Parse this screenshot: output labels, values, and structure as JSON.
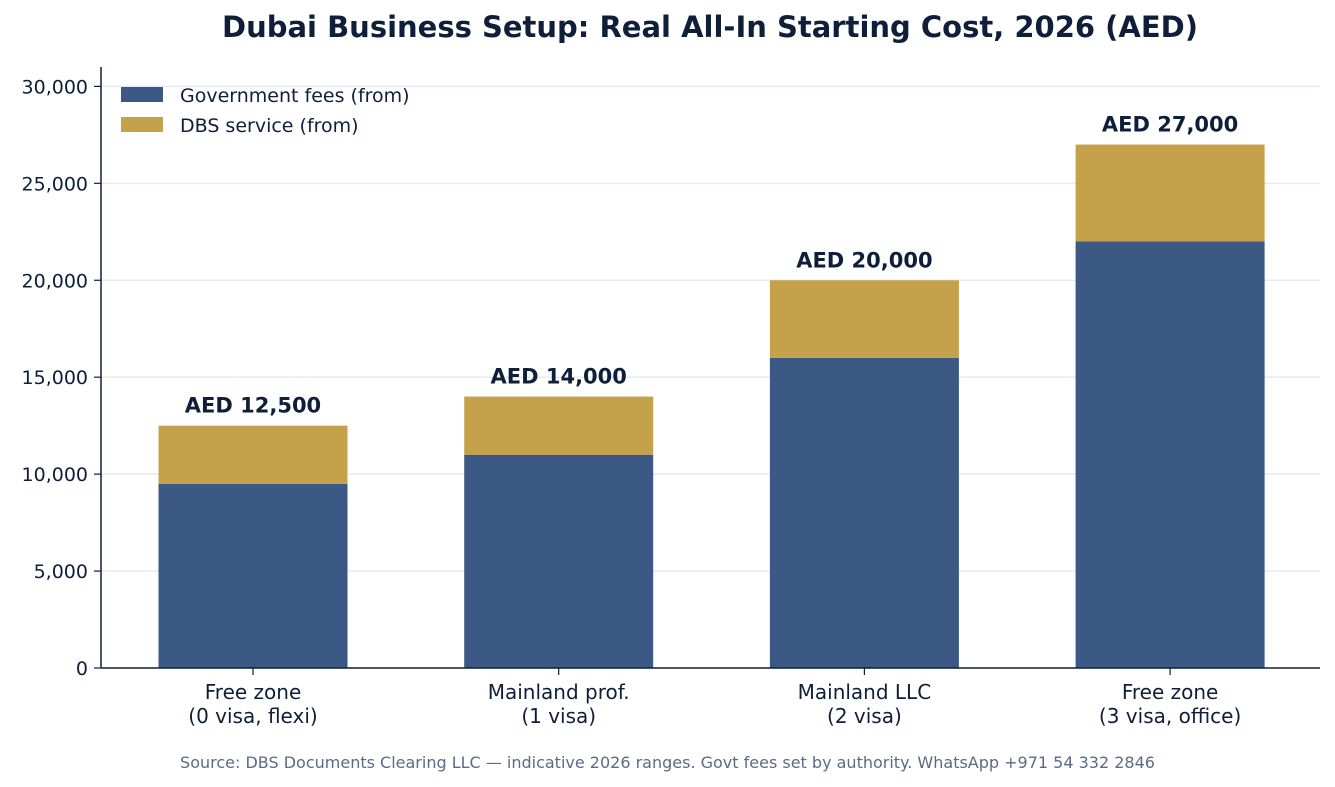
{
  "chart_data": {
    "type": "bar",
    "stacked": true,
    "title": "Dubai Business Setup: Real All-In Starting Cost, 2026 (AED)",
    "xlabel": "",
    "ylabel": "",
    "categories": [
      [
        "Free zone",
        "(0 visa, flexi)"
      ],
      [
        "Mainland prof.",
        "(1 visa)"
      ],
      [
        "Mainland LLC",
        "(2 visa)"
      ],
      [
        "Free zone",
        "(3 visa, office)"
      ]
    ],
    "series": [
      {
        "name": "Government fees (from)",
        "color": "#3b5984",
        "values": [
          9500,
          11000,
          16000,
          22000
        ]
      },
      {
        "name": "DBS service (from)",
        "color": "#c6a14c",
        "values": [
          3000,
          3000,
          4000,
          5000
        ]
      }
    ],
    "total_labels": [
      "AED 12,500",
      "AED 14,000",
      "AED 20,000",
      "AED 27,000"
    ],
    "yticks": [
      0,
      5000,
      10000,
      15000,
      20000,
      25000,
      30000
    ],
    "ytick_labels": [
      "0",
      "5,000",
      "10,000",
      "15,000",
      "20,000",
      "25,000",
      "30,000"
    ],
    "ylim": [
      0,
      31000
    ],
    "grid": "horizontal",
    "legend_position": "top-left"
  },
  "source_note": "Source: DBS Documents Clearing LLC — indicative 2026 ranges. Govt fees set by authority. WhatsApp +971 54 332 2846"
}
